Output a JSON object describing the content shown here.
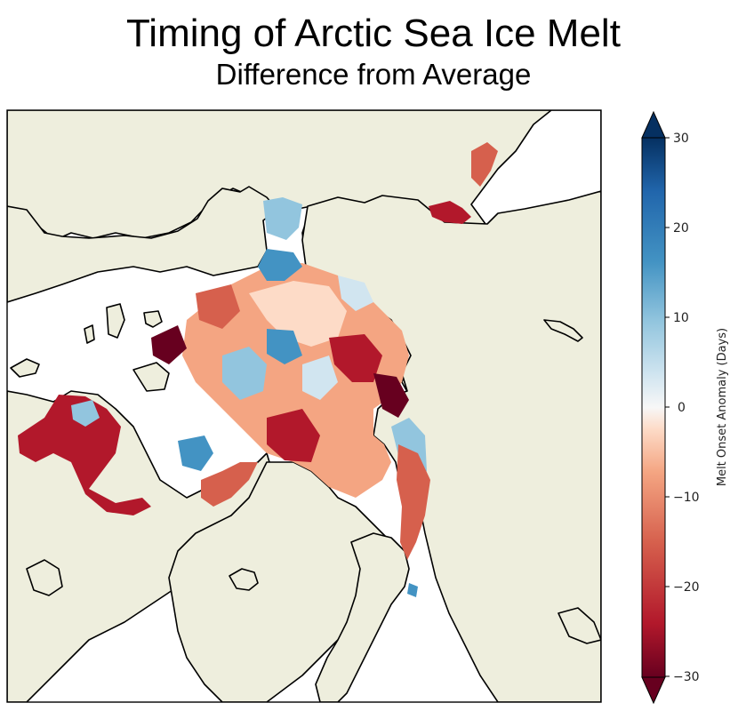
{
  "title": "Timing of Arctic Sea Ice Melt",
  "subtitle": "Difference from Average",
  "colorbar": {
    "label": "Melt Onset Anomaly (Days)",
    "ticks": [
      "30",
      "20",
      "10",
      "0",
      "−10",
      "−20",
      "−30"
    ],
    "range": [
      -30,
      30
    ],
    "extend": "both",
    "colormap": "RdBu"
  },
  "colors": {
    "land": "#eeeedd",
    "ocean": "#ffffff",
    "coastline": "#000000",
    "anomaly_early": "#67001f",
    "anomaly_zero": "#f7f7f7",
    "anomaly_late": "#053061"
  }
}
